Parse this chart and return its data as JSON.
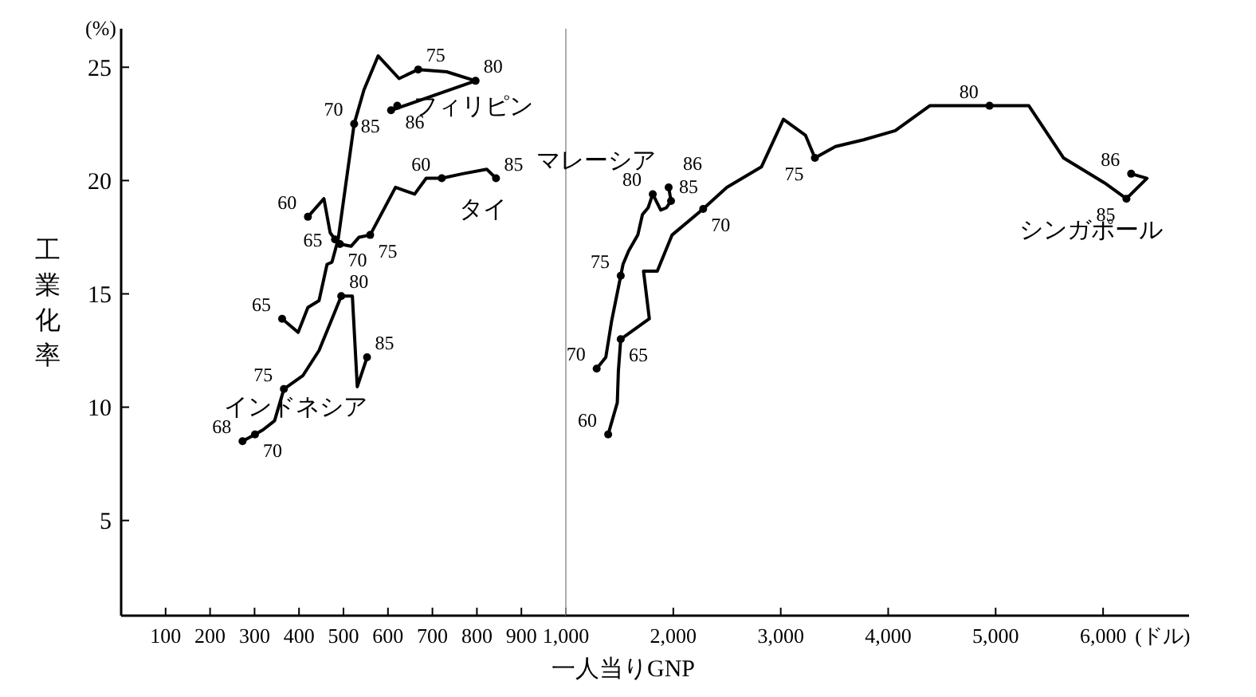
{
  "chart_data": [
    {
      "type": "line",
      "ylabel": "工業化率",
      "xlabel": "一人当りGNP",
      "xlim": [
        0,
        1000
      ],
      "ylim": [
        0.8,
        26.7
      ],
      "xticks": [
        100,
        200,
        300,
        400,
        500,
        600,
        700,
        800,
        900,
        {
          "value": 1000,
          "label": "1,000"
        }
      ],
      "yticks": [
        5,
        10,
        15,
        20,
        25
      ],
      "marker": "none",
      "line_style": "solid",
      "series": [
        {
          "name": "インドネシア",
          "color": "#000000",
          "x": [
            273,
            301,
            319,
            345,
            366,
            409,
            445,
            470,
            495,
            520,
            531,
            553
          ],
          "values": [
            8.5,
            8.8,
            9.0,
            9.4,
            10.8,
            11.4,
            12.5,
            13.7,
            14.9,
            14.9,
            10.9,
            12.2
          ]
        },
        {
          "name": "タイ",
          "color": "#000000",
          "x": [
            420,
            456,
            470,
            481,
            492,
            517,
            535,
            560,
            617,
            660,
            686,
            721,
            768,
            822,
            843
          ],
          "values": [
            18.4,
            19.2,
            17.7,
            17.4,
            17.2,
            17.1,
            17.5,
            17.6,
            19.7,
            19.4,
            20.1,
            20.1,
            20.3,
            20.5,
            20.1
          ]
        },
        {
          "name": "フィリピン",
          "color": "#000000",
          "x": [
            362,
            398,
            420,
            445,
            463,
            474,
            488,
            524,
            546,
            578,
            625,
            668,
            732,
            797,
            607,
            621
          ],
          "values": [
            13.9,
            13.3,
            14.4,
            14.7,
            16.3,
            16.4,
            17.4,
            22.5,
            24.0,
            25.5,
            24.5,
            24.9,
            24.8,
            24.4,
            23.1,
            23.3
          ]
        }
      ],
      "annotations": [
        "(%)",
        {
          "text": "68",
          "x": 273,
          "y": 8.5
        },
        {
          "text": "70",
          "x": 301,
          "y": 8.8
        },
        {
          "text": "75",
          "x": 366,
          "y": 10.8
        },
        {
          "text": "80",
          "x": 495,
          "y": 14.9
        },
        {
          "text": "85",
          "x": 553,
          "y": 12.2
        },
        {
          "text": "60",
          "x": 420,
          "y": 18.4
        },
        {
          "text": "65",
          "x": 481,
          "y": 17.4
        },
        {
          "text": "70",
          "x": 492,
          "y": 17.2
        },
        {
          "text": "75",
          "x": 560,
          "y": 17.6
        },
        {
          "text": "60",
          "x": 721,
          "y": 20.1
        },
        {
          "text": "85",
          "x": 843,
          "y": 20.1
        },
        {
          "text": "65",
          "x": 362,
          "y": 13.9
        },
        {
          "text": "70",
          "x": 524,
          "y": 22.5
        },
        {
          "text": "75",
          "x": 668,
          "y": 24.9
        },
        {
          "text": "80",
          "x": 797,
          "y": 24.4
        },
        {
          "text": "85",
          "x": 607,
          "y": 23.1
        },
        {
          "text": "86",
          "x": 621,
          "y": 23.3
        }
      ]
    },
    {
      "type": "line",
      "xlim": [
        1000,
        6800
      ],
      "ylim": [
        0.8,
        26.7
      ],
      "tick_labels": "x",
      "xticks": [
        {
          "value": 2000,
          "label": "2,000"
        },
        {
          "value": 3000,
          "label": "3,000"
        },
        {
          "value": 4000,
          "label": "4,000"
        },
        {
          "value": 5000,
          "label": "5,000"
        },
        {
          "value": 6000,
          "label": "6,000"
        }
      ],
      "marker": "none",
      "line_style": "solid",
      "series": [
        {
          "name": "マレーシア",
          "color": "#000000",
          "x": [
            1287,
            1372,
            1426,
            1511,
            1532,
            1585,
            1670,
            1713,
            1766,
            1809,
            1883,
            1936,
            1979,
            1957
          ],
          "values": [
            11.7,
            12.2,
            13.8,
            15.8,
            16.3,
            16.9,
            17.6,
            18.5,
            18.8,
            19.4,
            18.7,
            18.8,
            19.1,
            19.7
          ]
        },
        {
          "name": "シンガポール",
          "color": "#000000",
          "x": [
            1394,
            1479,
            1489,
            1511,
            1777,
            1723,
            1851,
            1989,
            2278,
            2498,
            2820,
            3025,
            3230,
            3318,
            3509,
            3772,
            4065,
            4387,
            4943,
            5309,
            5631,
            6012,
            6217,
            6408,
            6261
          ],
          "values": [
            8.8,
            10.2,
            11.6,
            13.0,
            13.9,
            16.0,
            16.0,
            17.6,
            18.75,
            19.7,
            20.6,
            22.7,
            22.0,
            21.0,
            21.5,
            21.8,
            22.2,
            23.3,
            23.3,
            23.3,
            21.0,
            19.9,
            19.2,
            20.1,
            20.3
          ]
        }
      ],
      "annotations": [
        "(ドル)",
        {
          "text": "70",
          "x": 1287,
          "y": 11.7
        },
        {
          "text": "75",
          "x": 1511,
          "y": 15.8
        },
        {
          "text": "80",
          "x": 1809,
          "y": 19.4
        },
        {
          "text": "85",
          "x": 1979,
          "y": 19.1
        },
        {
          "text": "86",
          "x": 1957,
          "y": 19.7
        },
        {
          "text": "60",
          "x": 1394,
          "y": 8.8
        },
        {
          "text": "65",
          "x": 1511,
          "y": 13.0
        },
        {
          "text": "70",
          "x": 2278,
          "y": 18.75
        },
        {
          "text": "75",
          "x": 3318,
          "y": 21.0
        },
        {
          "text": "80",
          "x": 4943,
          "y": 23.3
        },
        {
          "text": "85",
          "x": 6217,
          "y": 19.2
        },
        {
          "text": "86",
          "x": 6261,
          "y": 20.3
        }
      ]
    }
  ]
}
